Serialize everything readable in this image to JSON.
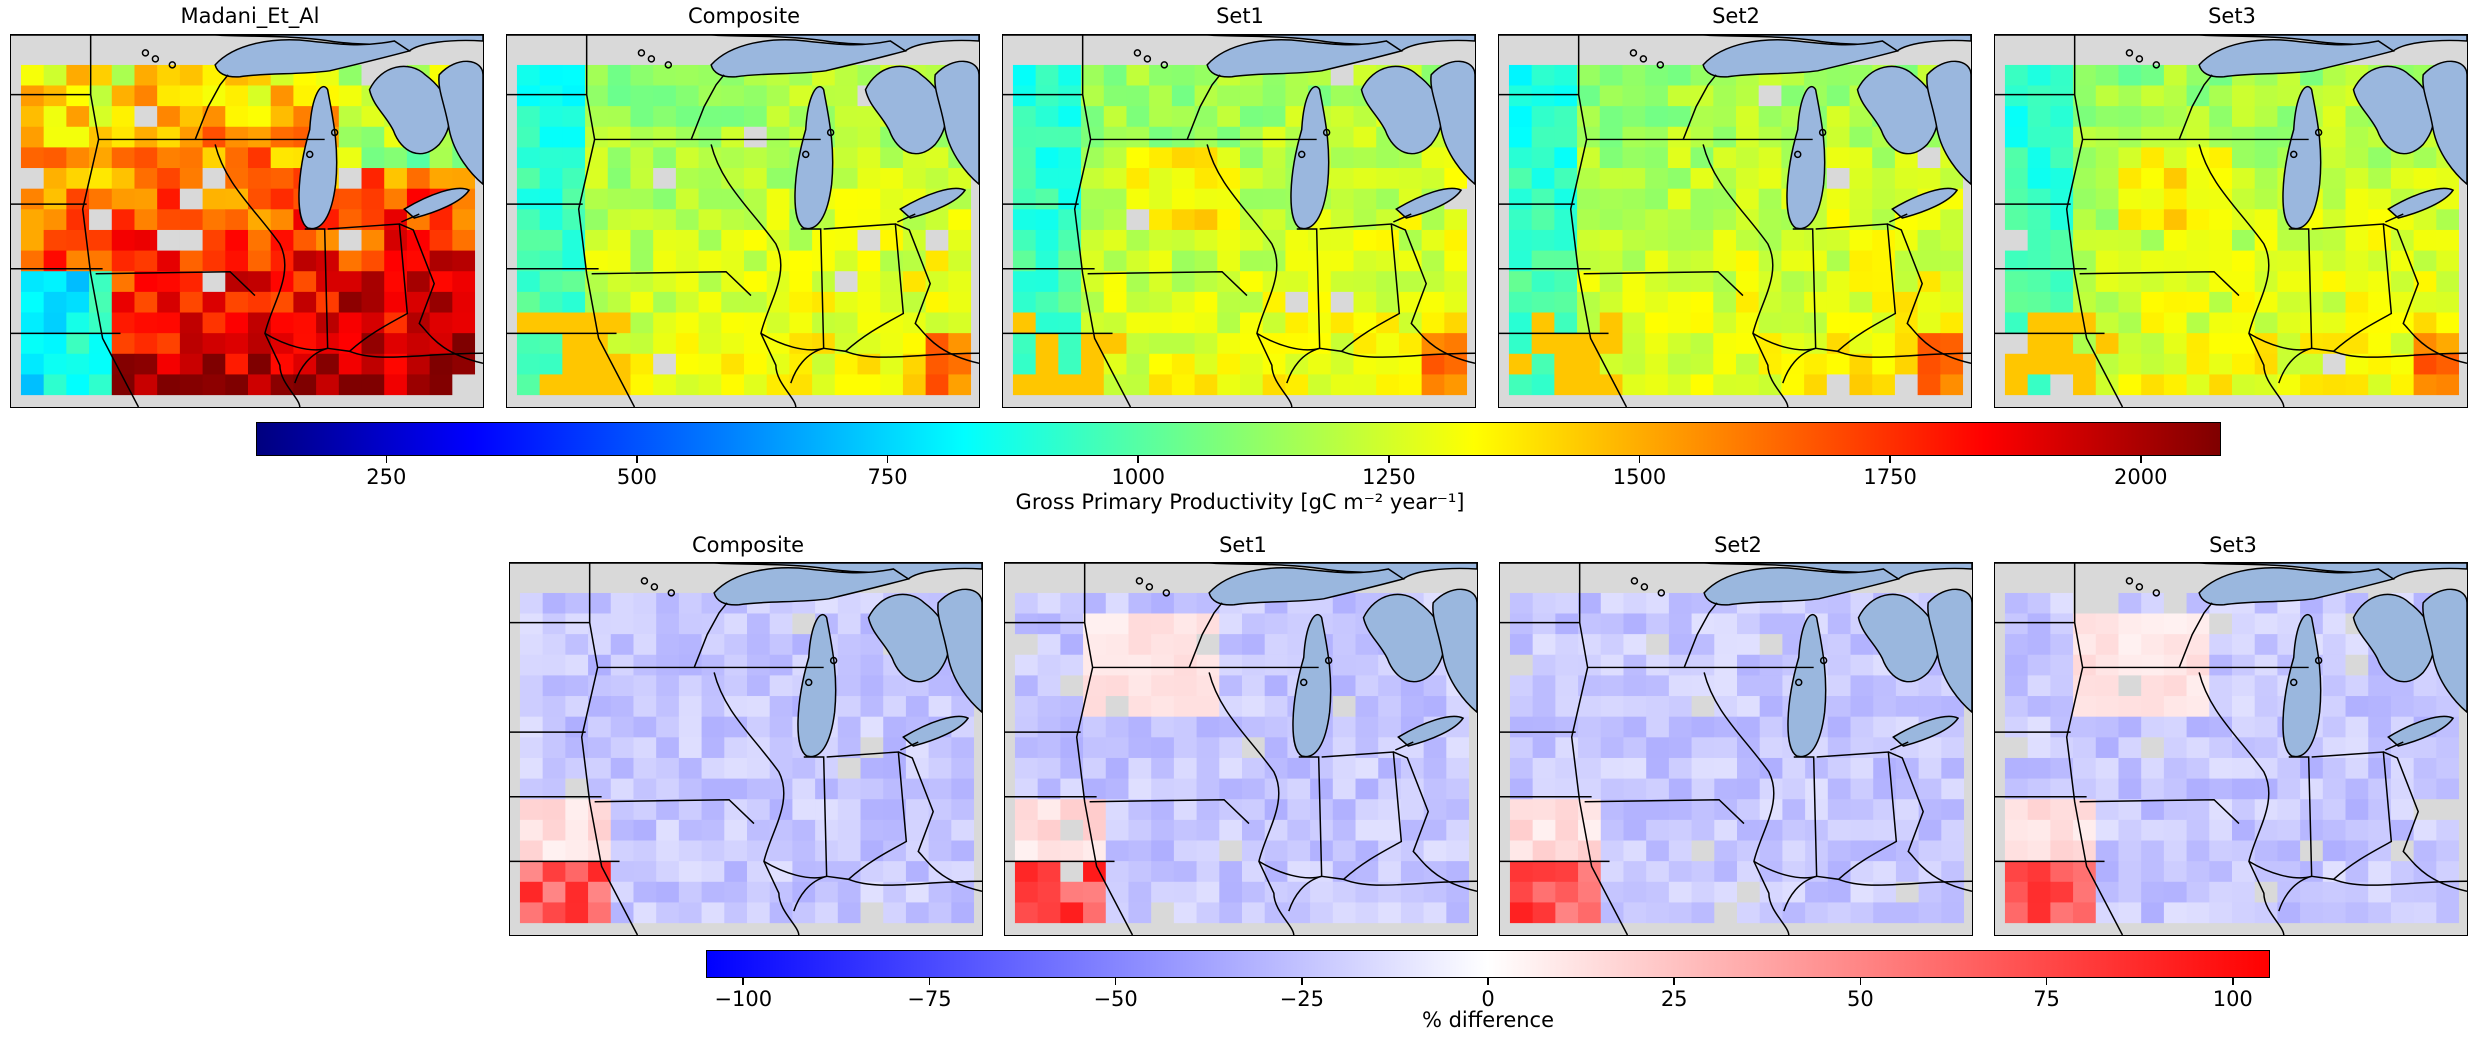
{
  "top_row": {
    "titles": [
      "Madani_Et_Al",
      "Composite",
      "Set1",
      "Set2",
      "Set3"
    ]
  },
  "bottom_row": {
    "titles": [
      "Composite",
      "Set1",
      "Set2",
      "Set3"
    ]
  },
  "colorbar_gpp": {
    "label": "Gross Primary Productivity [gC m⁻² year⁻¹]",
    "colormap": "jet",
    "range": [
      120,
      2080
    ],
    "ticks": [
      "250",
      "500",
      "750",
      "1000",
      "1250",
      "1500",
      "1750",
      "2000"
    ]
  },
  "colorbar_diff": {
    "label": "% difference",
    "colormap": "bwr",
    "range": [
      -105,
      105
    ],
    "ticks": [
      "−100",
      "−75",
      "−50",
      "−25",
      "0",
      "25",
      "50",
      "75",
      "100"
    ]
  },
  "colors": {
    "land_background": "#d9d9d9",
    "water": "#9ab7de",
    "border": "#000000"
  }
}
